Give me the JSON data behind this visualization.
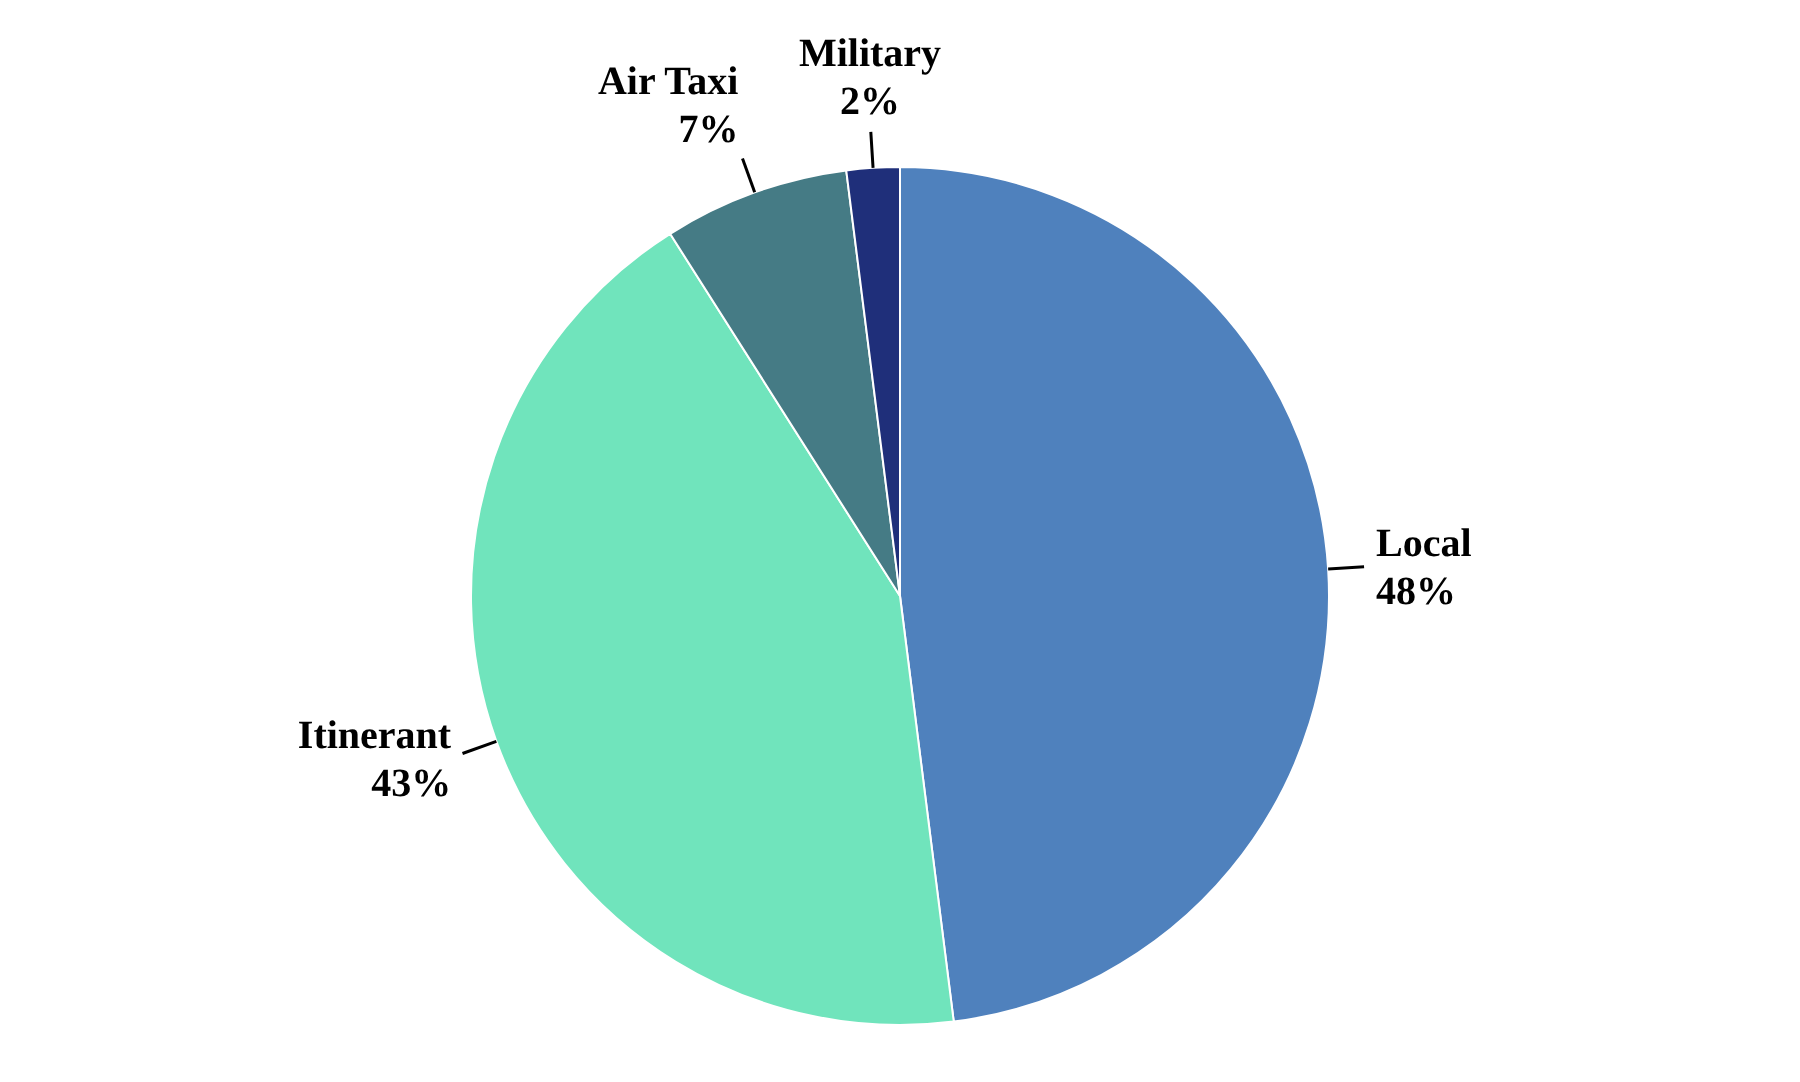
{
  "chart_data": {
    "type": "pie",
    "categories": [
      "Local",
      "Itinerant",
      "Air Taxi",
      "Military"
    ],
    "values": [
      48,
      43,
      7,
      2
    ],
    "colors": [
      "#4f81bd",
      "#70e4bc",
      "#457b85",
      "#1f2f7a"
    ],
    "value_labels": [
      "48%",
      "43%",
      "7%",
      "2%"
    ],
    "legend": false
  }
}
